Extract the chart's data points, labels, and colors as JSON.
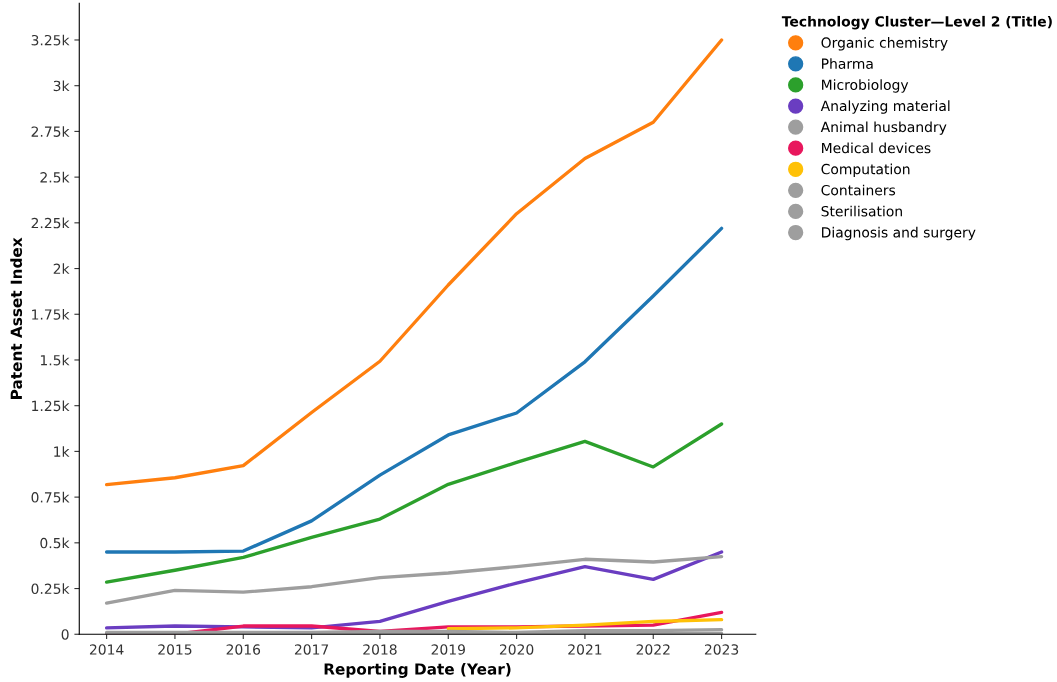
{
  "chart_data": {
    "type": "line",
    "xlabel": "Reporting Date (Year)",
    "ylabel": "Patent Asset Index",
    "legend_title": "Technology Cluster—Level 2 (Title)",
    "x": [
      2014,
      2015,
      2016,
      2017,
      2018,
      2019,
      2020,
      2021,
      2022,
      2023
    ],
    "xlim": [
      2013.6,
      2023.5
    ],
    "xticks": [
      2014,
      2015,
      2016,
      2017,
      2018,
      2019,
      2020,
      2021,
      2022,
      2023
    ],
    "ylim": [
      0,
      3450
    ],
    "yticks": [
      {
        "value": 0,
        "label": "0"
      },
      {
        "value": 250,
        "label": "0.25k"
      },
      {
        "value": 500,
        "label": "0.5k"
      },
      {
        "value": 750,
        "label": "0.75k"
      },
      {
        "value": 1000,
        "label": "1k"
      },
      {
        "value": 1250,
        "label": "1.25k"
      },
      {
        "value": 1500,
        "label": "1.5k"
      },
      {
        "value": 1750,
        "label": "1.75k"
      },
      {
        "value": 2000,
        "label": "2k"
      },
      {
        "value": 2250,
        "label": "2.25k"
      },
      {
        "value": 2500,
        "label": "2.5k"
      },
      {
        "value": 2750,
        "label": "2.75k"
      },
      {
        "value": 3000,
        "label": "3k"
      },
      {
        "value": 3250,
        "label": "3.25k"
      }
    ],
    "grid": false,
    "legend": "top right",
    "marker": "none",
    "line_style": "solid",
    "series": [
      {
        "name": "Organic chemistry",
        "color": "#ff7f0e",
        "values": [
          818,
          856,
          922,
          1213,
          1493,
          1910,
          2300,
          2602,
          2800,
          3250
        ]
      },
      {
        "name": "Pharma",
        "color": "#1f77b4",
        "values": [
          450,
          450,
          455,
          620,
          870,
          1090,
          1210,
          1490,
          1850,
          2220
        ]
      },
      {
        "name": "Microbiology",
        "color": "#2ca02c",
        "values": [
          285,
          350,
          420,
          530,
          630,
          820,
          940,
          1055,
          915,
          1150
        ]
      },
      {
        "name": "Analyzing material",
        "color": "#6a3dc1",
        "values": [
          35,
          45,
          40,
          35,
          70,
          180,
          280,
          370,
          300,
          450
        ]
      },
      {
        "name": "Animal husbandry",
        "color": "#9e9e9e",
        "values": [
          170,
          240,
          230,
          260,
          310,
          335,
          370,
          410,
          395,
          425
        ]
      },
      {
        "name": "Medical devices",
        "color": "#e8175d",
        "values": [
          0,
          0,
          45,
          45,
          15,
          40,
          40,
          45,
          50,
          120
        ]
      },
      {
        "name": "Computation",
        "color": "#ffc107",
        "values": [
          null,
          null,
          null,
          null,
          null,
          30,
          35,
          50,
          70,
          80
        ]
      },
      {
        "name": "Containers",
        "color": "#9e9e9e",
        "values": [
          10,
          10,
          10,
          10,
          15,
          15,
          10,
          20,
          20,
          25
        ]
      },
      {
        "name": "Sterilisation",
        "color": "#9e9e9e",
        "values": [
          null,
          null,
          null,
          null,
          null,
          null,
          null,
          null,
          null,
          null
        ]
      },
      {
        "name": "Diagnosis and surgery",
        "color": "#9e9e9e",
        "values": [
          0,
          0,
          0,
          0,
          5,
          5,
          0,
          5,
          5,
          5
        ]
      }
    ]
  }
}
